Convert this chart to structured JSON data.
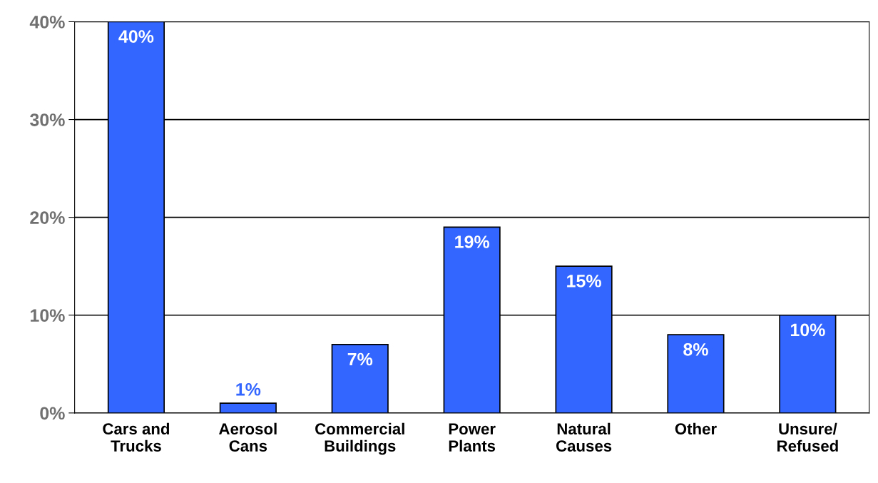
{
  "chart_data": {
    "type": "bar",
    "categories": [
      "Cars and\nTrucks",
      "Aerosol\nCans",
      "Commercial\nBuildings",
      "Power\nPlants",
      "Natural\nCauses",
      "Other",
      "Unsure/\nRefused"
    ],
    "values": [
      40,
      1,
      7,
      19,
      15,
      8,
      10
    ],
    "value_labels": [
      "40%",
      "1%",
      "7%",
      "19%",
      "15%",
      "8%",
      "10%"
    ],
    "color": "#3366ff",
    "ylim": [
      0,
      40
    ],
    "yticks": [
      {
        "value": 0,
        "label": "0%"
      },
      {
        "value": 10,
        "label": "10%"
      },
      {
        "value": 20,
        "label": "20%"
      },
      {
        "value": 30,
        "label": "30%"
      },
      {
        "value": 40,
        "label": "40%"
      }
    ],
    "grid": "y"
  }
}
